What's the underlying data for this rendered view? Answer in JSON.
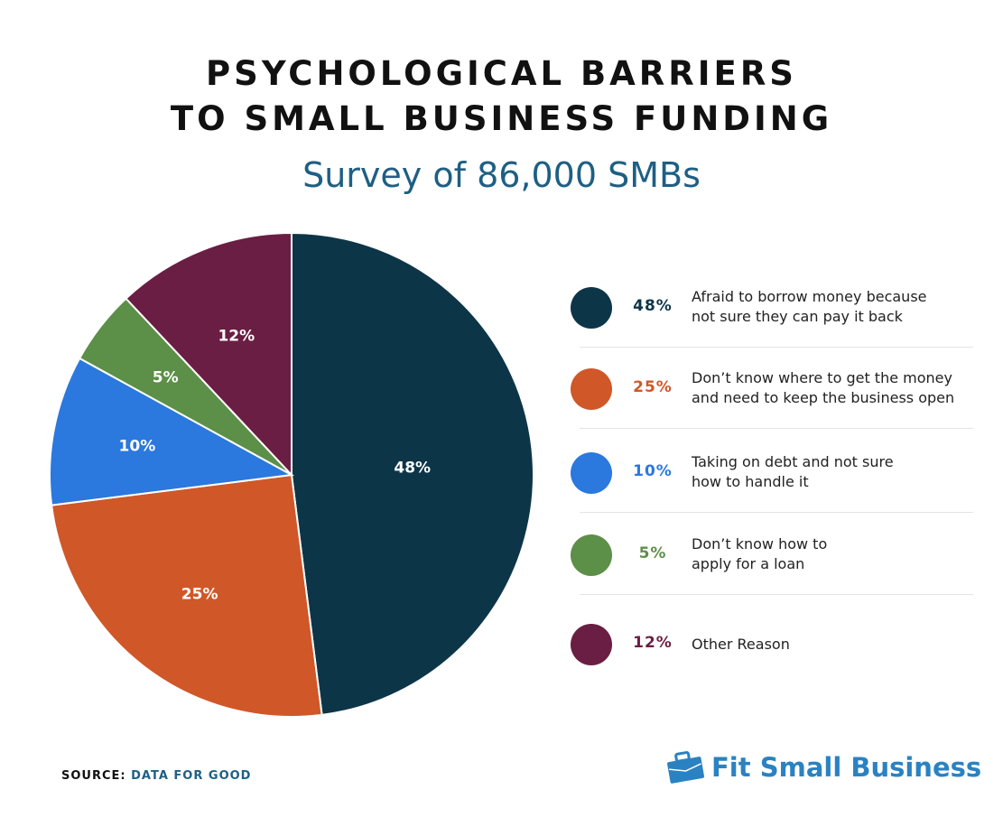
{
  "title_line1": "PSYCHOLOGICAL BARRIERS",
  "title_line2": "TO SMALL BUSINESS FUNDING",
  "subtitle": "Survey of 86,000 SMBs",
  "chart_data": {
    "type": "pie",
    "start": "top, clockwise",
    "slices": [
      {
        "label": "48%",
        "value": 48,
        "color": "#0d3548",
        "description": [
          "Afraid to borrow money because",
          "not sure they can pay it back"
        ]
      },
      {
        "label": "25%",
        "value": 25,
        "color": "#d05728",
        "description": [
          "Don’t know where to get the money",
          "and need to keep the business open"
        ]
      },
      {
        "label": "10%",
        "value": 10,
        "color": "#2b78de",
        "description": [
          "Taking on debt and not sure",
          "how to handle it"
        ]
      },
      {
        "label": "5%",
        "value": 5,
        "color": "#5c8f48",
        "description": [
          "Don’t know how to",
          "apply for a loan"
        ]
      },
      {
        "label": "12%",
        "value": 12,
        "color": "#6a1e43",
        "description": [
          "Other Reason"
        ]
      }
    ],
    "legend": "right"
  },
  "source": {
    "label": "SOURCE:",
    "value": "DATA FOR GOOD"
  },
  "logo": {
    "text": "Fit Small Business",
    "color": "#2a82c2"
  }
}
